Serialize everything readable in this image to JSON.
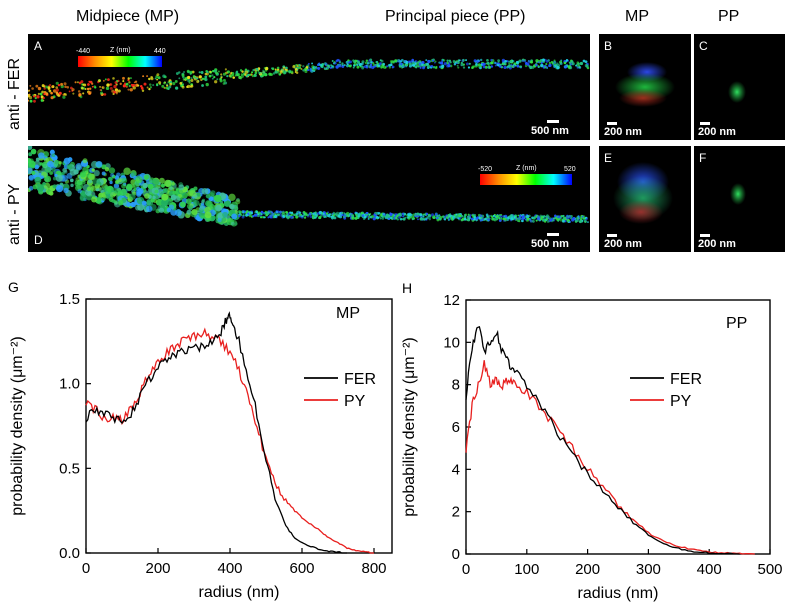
{
  "headers": {
    "midpiece": "Midpiece (MP)",
    "principal": "Principal piece (PP)",
    "mp": "MP",
    "pp": "PP"
  },
  "row_labels": {
    "fer": "anti - FER",
    "py": "anti - PY"
  },
  "panels": {
    "A": {
      "letter": "A",
      "scale": "500 nm"
    },
    "B": {
      "letter": "B",
      "scale": "200 nm"
    },
    "C": {
      "letter": "C",
      "scale": "200 nm"
    },
    "D": {
      "letter": "D",
      "scale": "500 nm"
    },
    "E": {
      "letter": "E",
      "scale": "200 nm"
    },
    "F": {
      "letter": "F",
      "scale": "200 nm"
    }
  },
  "colorbars": {
    "top": {
      "min": "-440",
      "title": "Z (nm)",
      "max": "440"
    },
    "bottom": {
      "min": "-520",
      "title": "Z (nm)",
      "max": "520"
    }
  },
  "chart_data": [
    {
      "type": "line",
      "panel_letter": "G",
      "annotation": "MP",
      "xlabel": "radius (nm)",
      "ylabel": "probability density (μm⁻²)",
      "xlim": [
        0,
        850
      ],
      "ylim": [
        0,
        1.5
      ],
      "xticks": [
        0,
        200,
        400,
        600,
        800
      ],
      "yticks": [
        0.0,
        0.5,
        1.0,
        1.5
      ],
      "xtick_labels": [
        "0",
        "200",
        "400",
        "600",
        "800"
      ],
      "ytick_labels": [
        "0.0",
        "0.5",
        "1.0",
        "1.5"
      ],
      "legend_position": "right",
      "series": [
        {
          "name": "FER",
          "color": "#000000",
          "x": [
            0,
            25,
            50,
            75,
            100,
            125,
            150,
            175,
            200,
            225,
            250,
            275,
            300,
            325,
            350,
            375,
            390,
            400,
            410,
            425,
            450,
            475,
            500,
            525,
            550,
            575,
            600,
            625,
            650,
            675,
            700,
            725
          ],
          "y": [
            0.8,
            0.85,
            0.82,
            0.8,
            0.78,
            0.82,
            0.92,
            1.02,
            1.1,
            1.15,
            1.18,
            1.2,
            1.21,
            1.22,
            1.25,
            1.3,
            1.38,
            1.4,
            1.35,
            1.25,
            1.05,
            0.82,
            0.55,
            0.33,
            0.18,
            0.1,
            0.06,
            0.04,
            0.02,
            0.01,
            0.005,
            0.0
          ]
        },
        {
          "name": "PY",
          "color": "#e8201f",
          "x": [
            0,
            25,
            50,
            75,
            100,
            125,
            150,
            175,
            200,
            225,
            250,
            275,
            300,
            325,
            350,
            375,
            400,
            425,
            450,
            475,
            500,
            525,
            550,
            575,
            600,
            625,
            650,
            675,
            700,
            725,
            750,
            775,
            800
          ],
          "y": [
            0.9,
            0.85,
            0.8,
            0.8,
            0.78,
            0.85,
            0.95,
            1.05,
            1.12,
            1.18,
            1.22,
            1.26,
            1.28,
            1.3,
            1.27,
            1.25,
            1.18,
            1.08,
            0.92,
            0.75,
            0.55,
            0.42,
            0.32,
            0.26,
            0.21,
            0.17,
            0.13,
            0.09,
            0.06,
            0.03,
            0.015,
            0.005,
            0.0
          ]
        }
      ]
    },
    {
      "type": "line",
      "panel_letter": "H",
      "annotation": "PP",
      "xlabel": "radius (nm)",
      "ylabel": "probability density (μm⁻²)",
      "xlim": [
        0,
        500
      ],
      "ylim": [
        0,
        12
      ],
      "xticks": [
        0,
        100,
        200,
        300,
        400,
        500
      ],
      "yticks": [
        0,
        2,
        4,
        6,
        8,
        10,
        12
      ],
      "xtick_labels": [
        "0",
        "100",
        "200",
        "300",
        "400",
        "500"
      ],
      "ytick_labels": [
        "0",
        "2",
        "4",
        "6",
        "8",
        "10",
        "12"
      ],
      "legend_position": "right",
      "series": [
        {
          "name": "FER",
          "color": "#000000",
          "x": [
            0,
            10,
            20,
            30,
            40,
            50,
            60,
            70,
            80,
            100,
            125,
            150,
            175,
            200,
            225,
            250,
            275,
            300,
            325,
            350,
            375,
            400,
            425,
            450
          ],
          "y": [
            7.5,
            9.8,
            10.8,
            9.6,
            10.0,
            10.5,
            9.5,
            9.0,
            8.7,
            8.0,
            7.0,
            5.8,
            4.7,
            3.8,
            3.0,
            2.2,
            1.5,
            0.9,
            0.5,
            0.25,
            0.12,
            0.05,
            0.02,
            0.0
          ]
        },
        {
          "name": "PY",
          "color": "#e8201f",
          "x": [
            0,
            10,
            20,
            30,
            40,
            50,
            60,
            70,
            80,
            100,
            125,
            150,
            175,
            200,
            225,
            250,
            275,
            300,
            325,
            350,
            375,
            400,
            425,
            450,
            475
          ],
          "y": [
            5.0,
            7.0,
            8.0,
            9.0,
            8.0,
            8.2,
            8.0,
            8.2,
            8.0,
            7.6,
            6.8,
            5.9,
            5.0,
            4.0,
            3.2,
            2.3,
            1.6,
            1.0,
            0.6,
            0.35,
            0.2,
            0.1,
            0.05,
            0.02,
            0.0
          ]
        }
      ]
    }
  ]
}
